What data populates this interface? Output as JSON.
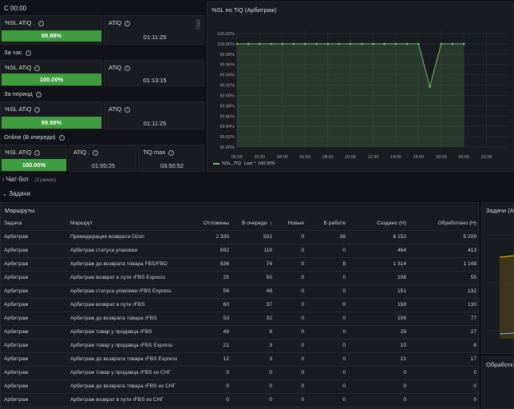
{
  "top_left": {
    "header_time": "С 00:00",
    "group1": {
      "sl_title": "%SL ATiQ .",
      "sl_value": "99.99%",
      "sl_fraction": 0.9999,
      "atiq_title": "ATiQ",
      "atiq_value": "01:11:25"
    },
    "za_chas_label": "За час",
    "group2": {
      "sl_title": "%SL ATiQ",
      "sl_value": "100.00%",
      "sl_fraction": 1.0,
      "atiq_title": "ATiQ",
      "atiq_value": "01:13:15"
    },
    "za_period_label": "За период",
    "group3": {
      "sl_title": "%SL ATiQ",
      "sl_value": "99.99%",
      "sl_fraction": 0.9999,
      "atiq_title": "ATiQ",
      "atiq_value": "01:11:25"
    },
    "online_label": "Online (В очереди)",
    "group4": {
      "sl_title": "%SL ATiQ",
      "sl_value": "100.00%",
      "sl_fraction": 1.0,
      "atiq_title": "ATiQ .",
      "atiq_value": "01:00:25",
      "tiq_max_title": "TiQ max",
      "tiq_max_value": "03:50:52"
    }
  },
  "chart_panel": {
    "title": "%SL по TiQ (Арбитраж)",
    "legend_label": "%SL_TIQ",
    "legend_last": "Last *: 100.00%",
    "color": "#73bf69"
  },
  "chart_data": {
    "type": "line",
    "x": [
      "00:00",
      "01:00",
      "02:00",
      "03:00",
      "04:00",
      "05:00",
      "06:00",
      "07:00",
      "08:00",
      "09:00",
      "10:00",
      "11:00",
      "12:00",
      "13:00",
      "14:00",
      "15:00",
      "16:00",
      "17:00",
      "18:00",
      "19:00",
      "20:00"
    ],
    "series": [
      {
        "name": "%SL_TIQ",
        "values": [
          100.0,
          100.0,
          100.0,
          100.0,
          100.0,
          100.0,
          100.0,
          100.0,
          100.0,
          100.0,
          100.0,
          100.0,
          100.0,
          100.0,
          100.0,
          100.0,
          100.0,
          99.917,
          100.0,
          100.0,
          100.0
        ]
      }
    ],
    "x_ticks": [
      "00:00",
      "02:00",
      "04:00",
      "06:00",
      "08:00",
      "10:00",
      "12:00",
      "14:00",
      "16:00",
      "18:00",
      "20:00",
      "22:00"
    ],
    "y_ticks": [
      "100.02%",
      "100.00%",
      "99.98%",
      "99.96%",
      "99.94%",
      "99.92%",
      "99.90%",
      "99.88%",
      "99.86%",
      "99.84%",
      "99.82%",
      "99.80%"
    ],
    "ylim": [
      99.8,
      100.02
    ],
    "grid": true
  },
  "rows": {
    "chatbot": {
      "label": "Чат-бот",
      "sub": "(3 panels)"
    },
    "tasks": {
      "label": "Задачи"
    }
  },
  "routes_panel": {
    "title": "Маршруты",
    "columns": [
      "Задача",
      "Маршрут",
      "Отложены",
      "В очереди",
      "Новые",
      "В работе",
      "Создано (Н)",
      "Обработано (Н)"
    ],
    "rows": [
      [
        "Арбитраж",
        "Премодерация возврата Ozon",
        "2 335",
        "501",
        "0",
        "38",
        "6 152",
        "5 209"
      ],
      [
        "Арбитраж",
        "Арбитраж статуса упаковки",
        "692",
        "118",
        "0",
        "0",
        "464",
        "413"
      ],
      [
        "Арбитраж",
        "Арбитраж до возврата товара FBS/FBO",
        "636",
        "74",
        "0",
        "8",
        "1 314",
        "1 148"
      ],
      [
        "Арбитраж",
        "Арбитраж возврат в пути rFBS Express",
        "25",
        "50",
        "0",
        "0",
        "106",
        "55"
      ],
      [
        "Арбитраж",
        "Арбитраж статуса упаковки rFBS Express",
        "56",
        "48",
        "0",
        "0",
        "151",
        "132"
      ],
      [
        "Арбитраж",
        "Арбитраж возврат в пути rFBS",
        "60",
        "37",
        "0",
        "0",
        "158",
        "130"
      ],
      [
        "Арбитраж",
        "Арбитраж до возврата товара rFBS",
        "53",
        "32",
        "0",
        "0",
        "106",
        "77"
      ],
      [
        "Арбитраж",
        "Арбитраж товар у продавца rFBS",
        "49",
        "8",
        "0",
        "0",
        "29",
        "27"
      ],
      [
        "Арбитраж",
        "Арбитраж товар у продавца rFBS Express",
        "21",
        "3",
        "0",
        "0",
        "10",
        "6"
      ],
      [
        "Арбитраж",
        "Арбитраж до возврата товара rFBS Express",
        "12",
        "3",
        "0",
        "0",
        "21",
        "17"
      ],
      [
        "Арбитраж",
        "Арбитраж товар у продавца rFBS из СНГ",
        "0",
        "0",
        "0",
        "0",
        "0",
        "0"
      ],
      [
        "Арбитраж",
        "Арбитраж до возврата товара rFBS из СНГ",
        "0",
        "0",
        "0",
        "0",
        "0",
        "0"
      ],
      [
        "Арбитраж",
        "Арбитраж возврат в пути rFBS из СНГ",
        "0",
        "0",
        "0",
        "0",
        "0",
        "0"
      ]
    ]
  },
  "right_panels": {
    "tasks_title": "Задачи (Ар",
    "processing_title": "Обработк"
  }
}
